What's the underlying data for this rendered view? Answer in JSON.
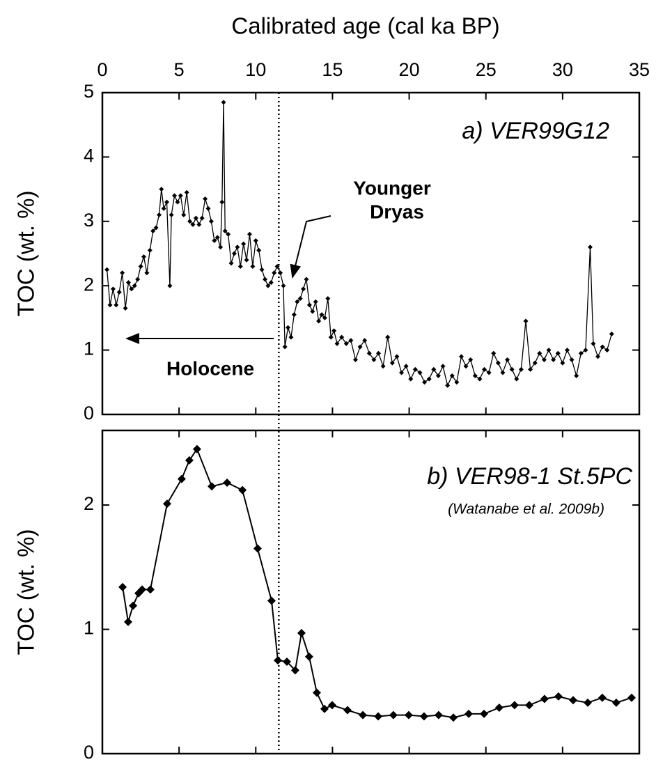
{
  "chart_data": [
    {
      "type": "line",
      "xlabel": "Calibrated age (cal ka BP)",
      "ylabel": "TOC (wt. %)",
      "xlim": [
        0,
        35
      ],
      "xticks": [
        0,
        5,
        10,
        15,
        20,
        25,
        30,
        35
      ],
      "ylim": [
        0,
        5
      ],
      "yticks": [
        0,
        1,
        2,
        3,
        4,
        5
      ],
      "color": "#000000",
      "vline": 11.5,
      "panel_label": "a) VER99G12",
      "annotation_yd": [
        "Younger",
        "Dryas"
      ],
      "annotation_holocene": "Holocene",
      "x": [
        0.3,
        0.5,
        0.7,
        0.9,
        1.1,
        1.3,
        1.5,
        1.7,
        1.9,
        2.1,
        2.3,
        2.5,
        2.7,
        2.9,
        3.1,
        3.3,
        3.5,
        3.7,
        3.85,
        4.0,
        4.2,
        4.4,
        4.5,
        4.7,
        4.9,
        5.1,
        5.3,
        5.5,
        5.7,
        5.9,
        6.1,
        6.3,
        6.5,
        6.7,
        6.9,
        7.1,
        7.3,
        7.5,
        7.7,
        7.8,
        7.9,
        8.0,
        8.2,
        8.4,
        8.6,
        8.8,
        9.0,
        9.2,
        9.4,
        9.6,
        9.8,
        10.0,
        10.2,
        10.4,
        10.6,
        10.8,
        11.0,
        11.2,
        11.4,
        11.6,
        11.8,
        11.9,
        12.1,
        12.3,
        12.5,
        12.7,
        12.9,
        13.1,
        13.3,
        13.5,
        13.7,
        13.9,
        14.1,
        14.3,
        14.5,
        14.7,
        14.9,
        15.1,
        15.3,
        15.6,
        15.9,
        16.2,
        16.5,
        16.8,
        17.1,
        17.4,
        17.7,
        18.0,
        18.3,
        18.6,
        18.9,
        19.2,
        19.5,
        19.8,
        20.1,
        20.4,
        20.7,
        21.0,
        21.3,
        21.6,
        21.9,
        22.2,
        22.5,
        22.8,
        23.1,
        23.4,
        23.7,
        24.0,
        24.3,
        24.6,
        24.9,
        25.2,
        25.5,
        25.8,
        26.1,
        26.4,
        26.7,
        27.0,
        27.3,
        27.6,
        27.9,
        28.2,
        28.5,
        28.8,
        29.1,
        29.4,
        29.7,
        30.0,
        30.3,
        30.6,
        30.9,
        31.2,
        31.5,
        31.8,
        32.0,
        32.3,
        32.6,
        32.9,
        33.2
      ],
      "values": [
        2.25,
        1.7,
        1.95,
        1.7,
        1.9,
        2.2,
        1.65,
        2.05,
        1.95,
        2.0,
        2.1,
        2.3,
        2.45,
        2.2,
        2.55,
        2.85,
        2.9,
        3.1,
        3.5,
        3.2,
        3.3,
        2.0,
        3.1,
        3.4,
        3.3,
        3.4,
        3.1,
        3.45,
        3.0,
        2.95,
        3.05,
        2.95,
        3.05,
        3.35,
        3.2,
        3.0,
        2.7,
        2.75,
        2.6,
        3.3,
        4.85,
        2.85,
        2.8,
        2.35,
        2.5,
        2.6,
        2.3,
        2.65,
        2.4,
        2.8,
        2.3,
        2.7,
        2.55,
        2.25,
        2.1,
        2.0,
        2.05,
        2.2,
        2.3,
        2.2,
        2.0,
        1.05,
        1.35,
        1.2,
        1.55,
        1.75,
        1.8,
        1.95,
        2.1,
        1.7,
        1.6,
        1.75,
        1.45,
        1.55,
        1.5,
        1.8,
        1.2,
        1.3,
        1.1,
        1.2,
        1.1,
        1.15,
        0.85,
        1.05,
        1.15,
        0.95,
        0.85,
        0.95,
        0.75,
        1.2,
        0.8,
        0.9,
        0.65,
        0.75,
        0.55,
        0.7,
        0.65,
        0.5,
        0.55,
        0.7,
        0.6,
        0.75,
        0.45,
        0.6,
        0.5,
        0.9,
        0.75,
        0.85,
        0.6,
        0.55,
        0.7,
        0.65,
        0.95,
        0.8,
        0.65,
        0.85,
        0.7,
        0.55,
        0.7,
        1.45,
        0.7,
        0.8,
        0.95,
        0.85,
        1.0,
        0.85,
        0.95,
        0.8,
        1.0,
        0.85,
        0.6,
        0.95,
        1.0,
        2.6,
        1.1,
        0.9,
        1.05,
        1.0,
        1.25
      ]
    },
    {
      "type": "line",
      "ylabel": "TOC (wt. %)",
      "xlim": [
        0,
        35
      ],
      "ylim": [
        0,
        2.6
      ],
      "yticks": [
        0,
        1,
        2
      ],
      "color": "#000000",
      "panel_label": "b) VER98-1 St.5PC",
      "source": "(Watanabe et al. 2009b)",
      "x": [
        1.32,
        1.68,
        2.0,
        2.36,
        2.59,
        3.13,
        4.22,
        5.17,
        5.67,
        6.17,
        7.13,
        8.13,
        9.13,
        10.12,
        11.03,
        11.44,
        12.03,
        12.57,
        12.98,
        13.48,
        13.98,
        14.48,
        14.98,
        15.98,
        16.98,
        17.98,
        18.97,
        19.97,
        20.97,
        21.92,
        22.88,
        23.88,
        24.88,
        25.87,
        26.87,
        27.83,
        28.82,
        29.73,
        30.69,
        31.64,
        32.59,
        33.5,
        34.5
      ],
      "values": [
        1.34,
        1.06,
        1.19,
        1.29,
        1.32,
        1.32,
        2.01,
        2.21,
        2.36,
        2.45,
        2.15,
        2.18,
        2.12,
        1.65,
        1.23,
        0.75,
        0.74,
        0.67,
        0.97,
        0.78,
        0.49,
        0.36,
        0.39,
        0.35,
        0.31,
        0.3,
        0.31,
        0.31,
        0.3,
        0.31,
        0.29,
        0.32,
        0.32,
        0.37,
        0.39,
        0.39,
        0.44,
        0.46,
        0.43,
        0.41,
        0.45,
        0.41,
        0.45
      ]
    }
  ]
}
